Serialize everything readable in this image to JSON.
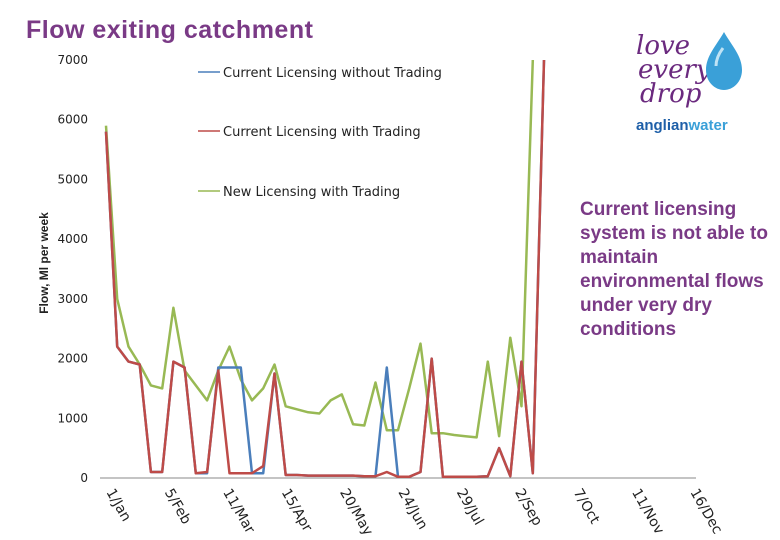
{
  "page": {
    "title": "Flow exiting catchment",
    "annotation": "Current licensing system is not able to maintain environmental flows under very dry conditions"
  },
  "logo": {
    "line1": "love",
    "line2": "every",
    "line3": "drop",
    "brand_a": "anglian",
    "brand_b": "water",
    "colors": {
      "script": "#6b2a7f",
      "drop": "#3aa0d8",
      "brand_a": "#1e5fa8",
      "brand_b": "#3aa0d8"
    }
  },
  "chart_data": {
    "type": "line",
    "title": "",
    "xlabel": "",
    "ylabel": "Flow, Ml per week",
    "ylim": [
      0,
      7000
    ],
    "yticks": [
      0,
      1000,
      2000,
      3000,
      4000,
      5000,
      6000,
      7000
    ],
    "x_tick_labels": [
      "1/Jan",
      "5/Feb",
      "11/Mar",
      "15/Apr",
      "20/May",
      "24/Jun",
      "29/Jul",
      "2/Sep",
      "7/Oct",
      "11/Nov",
      "16/Dec"
    ],
    "week_count": 53,
    "legend_placement": "top-center",
    "series": [
      {
        "name": "Current Licensing without Trading",
        "color": "#4a7ebb",
        "values": [
          5800,
          2200,
          1950,
          1900,
          100,
          100,
          1950,
          1850,
          80,
          80,
          1850,
          1850,
          1850,
          80,
          80,
          1750,
          50,
          50,
          40,
          40,
          40,
          40,
          40,
          30,
          30,
          1850,
          20,
          20,
          100,
          2000,
          20,
          20,
          20,
          20,
          30,
          500,
          30,
          1950,
          80,
          7000,
          null,
          null,
          null,
          null,
          null,
          null,
          null,
          null,
          null,
          null,
          null,
          null,
          null
        ]
      },
      {
        "name": "Current Licensing with Trading",
        "color": "#be4b48",
        "values": [
          5800,
          2200,
          1950,
          1900,
          100,
          100,
          1950,
          1850,
          80,
          100,
          1800,
          80,
          80,
          80,
          200,
          1750,
          50,
          50,
          40,
          40,
          40,
          40,
          40,
          30,
          30,
          100,
          20,
          20,
          100,
          2000,
          20,
          20,
          20,
          20,
          30,
          500,
          30,
          1950,
          80,
          7000,
          null,
          null,
          null,
          null,
          null,
          null,
          null,
          null,
          null,
          null,
          null,
          null,
          null
        ]
      },
      {
        "name": "New Licensing with Trading",
        "color": "#98b954",
        "values": [
          5900,
          3000,
          2200,
          1900,
          1550,
          1500,
          2850,
          1800,
          1550,
          1300,
          1800,
          2200,
          1650,
          1300,
          1500,
          1900,
          1200,
          1150,
          1100,
          1080,
          1300,
          1400,
          900,
          880,
          1600,
          800,
          800,
          1500,
          2250,
          750,
          750,
          720,
          700,
          680,
          1950,
          700,
          2350,
          1200,
          7000,
          null,
          null,
          null,
          null,
          null,
          null,
          null,
          null,
          null,
          null,
          null,
          null,
          null,
          null
        ]
      }
    ]
  }
}
